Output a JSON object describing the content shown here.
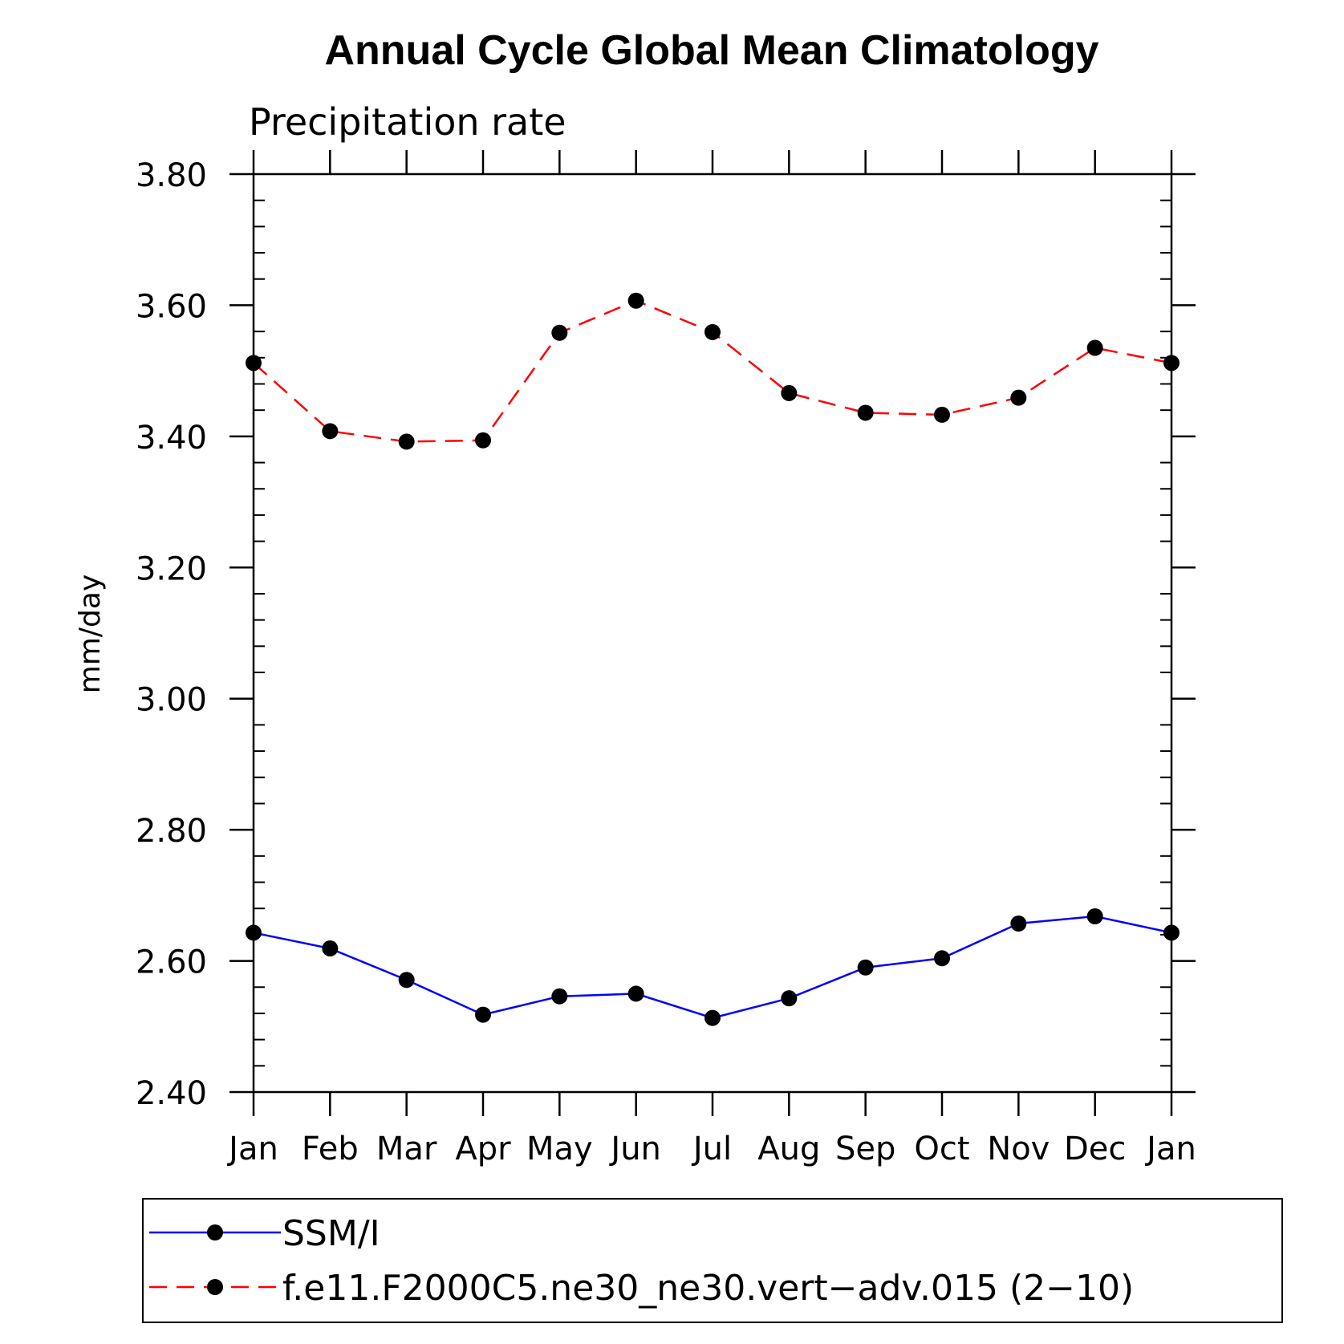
{
  "chart_data": {
    "type": "line",
    "title": "Annual Cycle Global Mean Climatology",
    "subtitle": "Precipitation rate",
    "xlabel": "",
    "ylabel": "mm/day",
    "categories": [
      "Jan",
      "Feb",
      "Mar",
      "Apr",
      "May",
      "Jun",
      "Jul",
      "Aug",
      "Sep",
      "Oct",
      "Nov",
      "Dec",
      "Jan"
    ],
    "ylim": [
      2.4,
      3.8
    ],
    "yticks": [
      "2.40",
      "2.60",
      "2.80",
      "3.00",
      "3.20",
      "3.40",
      "3.60",
      "3.80"
    ],
    "grid": false,
    "legend_position": "bottom",
    "series": [
      {
        "name": "SSM/I",
        "color": "#0000ff",
        "dash": "solid",
        "marker": "filled-circle",
        "values": [
          2.643,
          2.619,
          2.571,
          2.518,
          2.546,
          2.55,
          2.513,
          2.543,
          2.59,
          2.604,
          2.657,
          2.668,
          2.643
        ]
      },
      {
        "name": "f.e11.F2000C5.ne30_ne30.vert−adv.015 (2−10)",
        "color": "#ff0000",
        "dash": "dashed",
        "marker": "filled-circle",
        "values": [
          3.512,
          3.408,
          3.392,
          3.394,
          3.558,
          3.607,
          3.559,
          3.466,
          3.436,
          3.433,
          3.459,
          3.535,
          3.512
        ]
      }
    ]
  }
}
